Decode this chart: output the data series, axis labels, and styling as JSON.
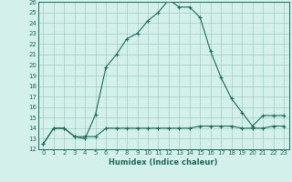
{
  "xlabel": "Humidex (Indice chaleur)",
  "xlim": [
    -0.5,
    23.5
  ],
  "ylim": [
    12,
    26
  ],
  "xticks": [
    0,
    1,
    2,
    3,
    4,
    5,
    6,
    7,
    8,
    9,
    10,
    11,
    12,
    13,
    14,
    15,
    16,
    17,
    18,
    19,
    20,
    21,
    22,
    23
  ],
  "yticks": [
    12,
    13,
    14,
    15,
    16,
    17,
    18,
    19,
    20,
    21,
    22,
    23,
    24,
    25,
    26
  ],
  "bg_color": "#d4f0eb",
  "grid_color": "#a0ccc4",
  "line_color": "#1a6b5a",
  "spine_color": "#1a6b5a",
  "line1_x": [
    0,
    1,
    2,
    3,
    4,
    5,
    6,
    7,
    8,
    9,
    10,
    11,
    12,
    13,
    14,
    15,
    16,
    17,
    18,
    19,
    20,
    21,
    22,
    23
  ],
  "line1_y": [
    12.5,
    14.0,
    14.0,
    13.2,
    13.0,
    15.3,
    19.8,
    21.0,
    22.5,
    23.0,
    24.2,
    25.0,
    26.2,
    25.5,
    25.5,
    24.5,
    21.3,
    18.8,
    16.8,
    15.5,
    14.2,
    15.2,
    15.2,
    15.2
  ],
  "line2_x": [
    0,
    1,
    2,
    3,
    4,
    5,
    6,
    7,
    8,
    9,
    10,
    11,
    12,
    13,
    14,
    15,
    16,
    17,
    18,
    19,
    20,
    21,
    22,
    23
  ],
  "line2_y": [
    12.5,
    14.0,
    14.0,
    13.2,
    13.2,
    13.2,
    14.0,
    14.0,
    14.0,
    14.0,
    14.0,
    14.0,
    14.0,
    14.0,
    14.0,
    14.2,
    14.2,
    14.2,
    14.2,
    14.0,
    14.0,
    14.0,
    14.2,
    14.2
  ],
  "tick_fontsize": 5.0,
  "xlabel_fontsize": 6.0
}
